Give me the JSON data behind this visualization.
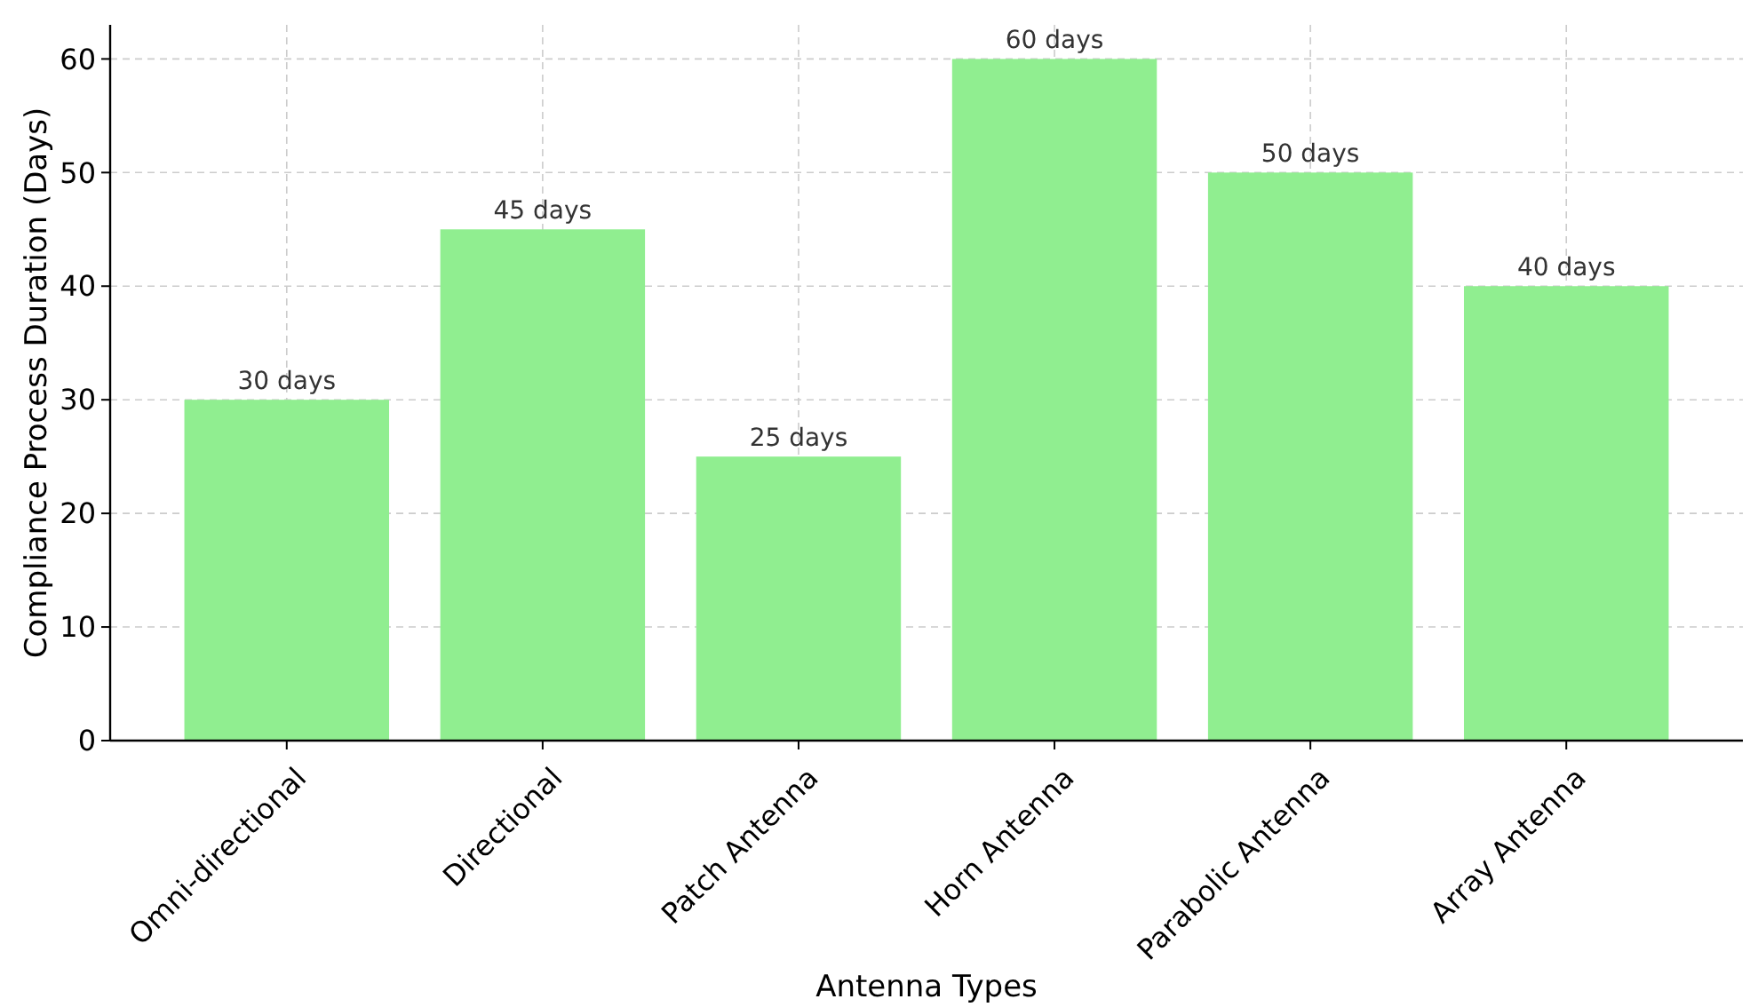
{
  "chart_data": {
    "type": "bar",
    "xlabel": "Antenna Types",
    "ylabel": "Compliance Process Duration (Days)",
    "categories": [
      "Omni-directional",
      "Directional",
      "Patch Antenna",
      "Horn Antenna",
      "Parabolic Antenna",
      "Array Antenna"
    ],
    "values": [
      30,
      45,
      25,
      60,
      50,
      40
    ],
    "value_labels": [
      "30 days",
      "45 days",
      "25 days",
      "60 days",
      "50 days",
      "40 days"
    ],
    "color": "#90ee90",
    "ylim": [
      0,
      63
    ],
    "yticks": [
      0,
      10,
      20,
      30,
      40,
      50,
      60
    ],
    "grid": true
  }
}
